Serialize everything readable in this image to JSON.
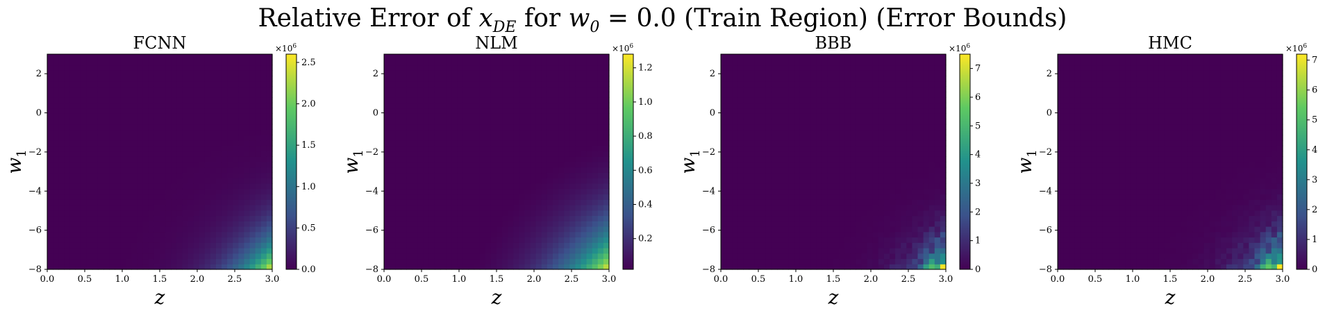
{
  "figure_title": {
    "prefix": "Relative Error of ",
    "var": "x",
    "var_sub": "DE",
    "mid": " for ",
    "param": "w",
    "param_sub": "0",
    "suffix": " = 0.0 (Train Region) (Error Bounds)"
  },
  "colormap": "viridis",
  "colormap_stops": [
    "#440154",
    "#3b528b",
    "#21918c",
    "#5ec962",
    "#fde725"
  ],
  "chart_data": [
    {
      "type": "heatmap",
      "title": "FCNN",
      "xlabel": "z",
      "ylabel": "w1",
      "xlim": [
        0.0,
        3.0
      ],
      "ylim": [
        -8,
        3
      ],
      "xticks": [
        "0.0",
        "0.5",
        "1.0",
        "1.5",
        "2.0",
        "2.5",
        "3.0"
      ],
      "yticks": [
        "2",
        "0",
        "−2",
        "−4",
        "−6",
        "−8"
      ],
      "grid_cells": 40,
      "value_model": {
        "kind": "smooth",
        "peak": 2.6,
        "exponent": 6.0
      },
      "colorbar": {
        "multiplier": "×10",
        "exponent": "6",
        "min": 0.0,
        "max": 2.6,
        "ticks": [
          "0.0",
          "0.5",
          "1.0",
          "1.5",
          "2.0",
          "2.5"
        ]
      }
    },
    {
      "type": "heatmap",
      "title": "NLM",
      "xlabel": "z",
      "ylabel": "w1",
      "xlim": [
        0.0,
        3.0
      ],
      "ylim": [
        -8,
        3
      ],
      "xticks": [
        "0.0",
        "0.5",
        "1.0",
        "1.5",
        "2.0",
        "2.5",
        "3.0"
      ],
      "yticks": [
        "2",
        "0",
        "−2",
        "−4",
        "−6",
        "−8"
      ],
      "grid_cells": 40,
      "value_model": {
        "kind": "smooth",
        "peak": 1.28,
        "exponent": 4.5
      },
      "colorbar": {
        "multiplier": "×10",
        "exponent": "6",
        "min": 0.02,
        "max": 1.28,
        "ticks": [
          "0.2",
          "0.4",
          "0.6",
          "0.8",
          "1.0",
          "1.2"
        ]
      }
    },
    {
      "type": "heatmap",
      "title": "BBB",
      "xlabel": "z",
      "ylabel": "w1",
      "xlim": [
        0.0,
        3.0
      ],
      "ylim": [
        -8,
        3
      ],
      "xticks": [
        "0.0",
        "0.5",
        "1.0",
        "1.5",
        "2.0",
        "2.5",
        "3.0"
      ],
      "yticks": [
        "2",
        "0",
        "−2",
        "−4",
        "−6",
        "−8"
      ],
      "grid_cells": 40,
      "value_model": {
        "kind": "blocky",
        "peak": 7.5,
        "exponent": 9.0
      },
      "colorbar": {
        "multiplier": "×10",
        "exponent": "6",
        "min": 0,
        "max": 7.5,
        "ticks": [
          "0",
          "1",
          "2",
          "3",
          "4",
          "5",
          "6",
          "7"
        ]
      }
    },
    {
      "type": "heatmap",
      "title": "HMC",
      "xlabel": "z",
      "ylabel": "w1",
      "xlim": [
        0.0,
        3.0
      ],
      "ylim": [
        -8,
        3
      ],
      "xticks": [
        "0.0",
        "0.5",
        "1.0",
        "1.5",
        "2.0",
        "2.5",
        "3.0"
      ],
      "yticks": [
        "2",
        "0",
        "−2",
        "−4",
        "−6",
        "−8"
      ],
      "grid_cells": 40,
      "value_model": {
        "kind": "blocky",
        "peak": 7.2,
        "exponent": 8.0
      },
      "colorbar": {
        "multiplier": "×10",
        "exponent": "6",
        "min": 0,
        "max": 7.2,
        "ticks": [
          "0",
          "1",
          "2",
          "3",
          "4",
          "5",
          "6",
          "7"
        ]
      }
    }
  ]
}
